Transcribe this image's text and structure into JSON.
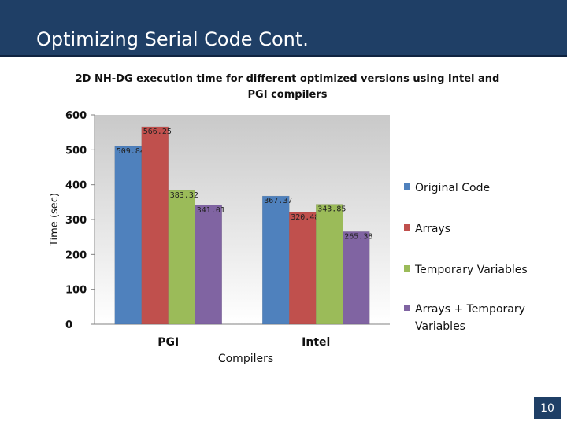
{
  "slide": {
    "title": "Optimizing Serial Code Cont.",
    "page_number": "10"
  },
  "chart_data": {
    "type": "bar",
    "title": "2D NH-DG execution time for different optimized versions using Intel and PGI compilers",
    "xlabel": "Compilers",
    "ylabel": "Time (sec)",
    "ylim": [
      0,
      600
    ],
    "yticks": [
      "0",
      "100",
      "200",
      "300",
      "400",
      "500",
      "600"
    ],
    "categories": [
      "PGI",
      "Intel"
    ],
    "series": [
      {
        "name": "Original Code",
        "values": [
          509.84,
          367.37
        ],
        "labels": [
          "509.84",
          "367.37"
        ],
        "color": "#4f81bd"
      },
      {
        "name": "Arrays",
        "values": [
          566.25,
          320.48
        ],
        "labels": [
          "566.25",
          "320.48"
        ],
        "color": "#c0504d"
      },
      {
        "name": "Temporary Variables",
        "values": [
          383.32,
          343.85
        ],
        "labels": [
          "383.32",
          "343.85"
        ],
        "color": "#9bbb59"
      },
      {
        "name": "Arrays + Temporary Variables",
        "values": [
          341.01,
          265.38
        ],
        "labels": [
          "341.01",
          "265.38"
        ],
        "color": "#8064a2"
      }
    ],
    "legend_position": "right",
    "grid": false
  }
}
